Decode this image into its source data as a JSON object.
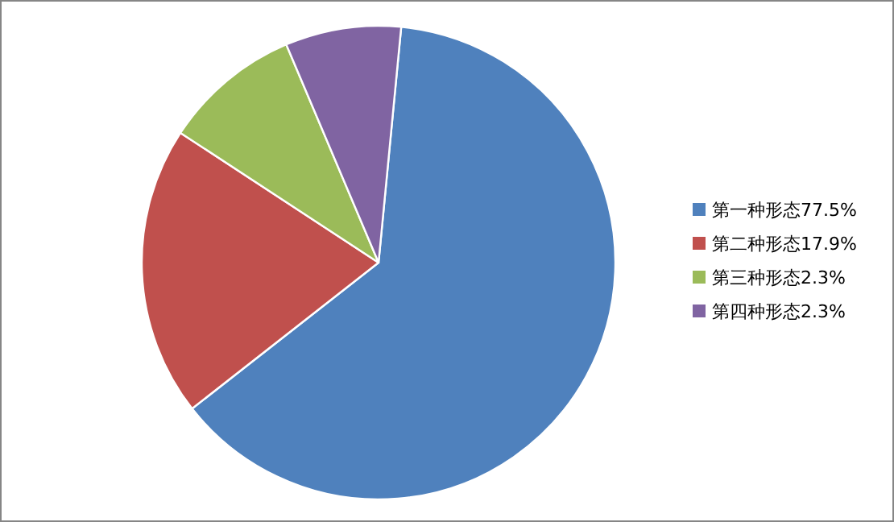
{
  "chart_data": {
    "type": "pie",
    "categories": [
      "第一种形态77.5%",
      "第二种形态17.9%",
      "第三种形态2.3%",
      "第四种形态2.3%"
    ],
    "values": [
      62.9,
      19.8,
      9.4,
      7.9
    ],
    "colors": [
      "#4f81bd",
      "#c0504d",
      "#9bbb59",
      "#8064a2"
    ],
    "legend": "right"
  }
}
